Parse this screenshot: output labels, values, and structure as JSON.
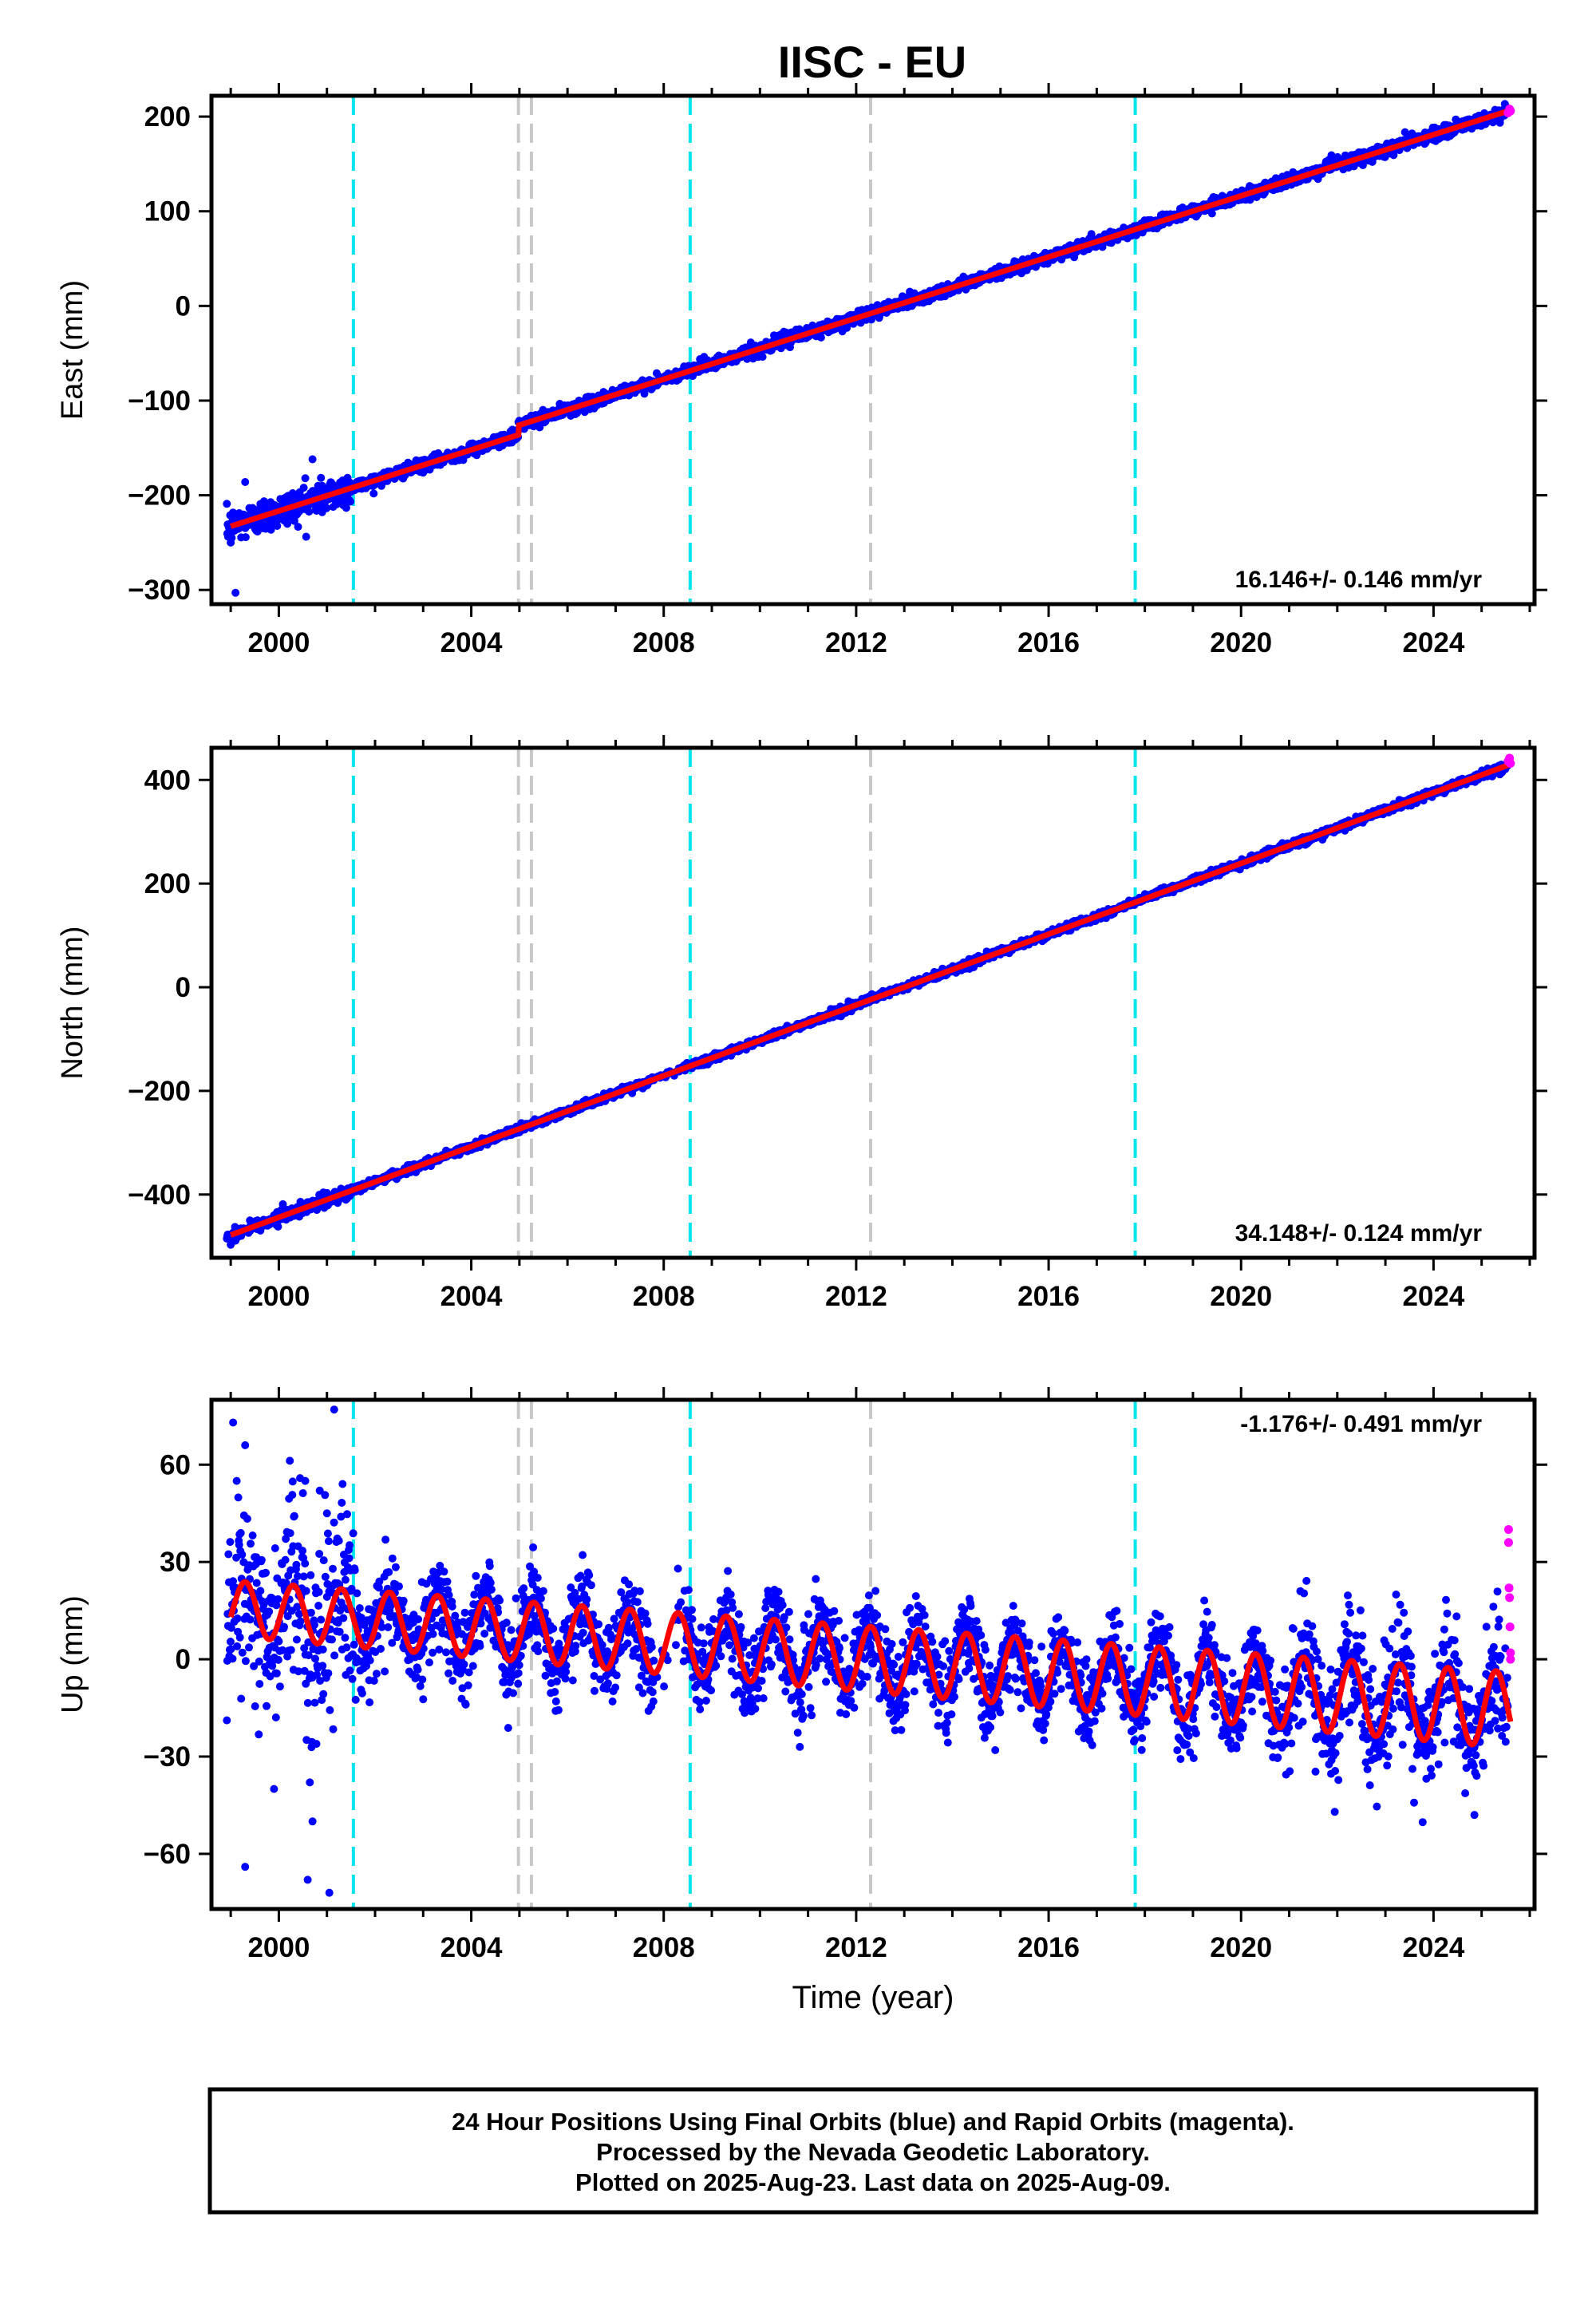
{
  "title": "IISC - EU",
  "colors": {
    "final_orbits": "#0000ff",
    "rapid_orbits": "#ff00ff",
    "model_fit": "#ff0000",
    "equipment_change": "#00e5ee",
    "earthquake": "#c8c8c8"
  },
  "xaxis": {
    "label": "Time (year)",
    "range": [
      1998.6,
      2026.1
    ],
    "tick_labels": [
      "2000",
      "2004",
      "2008",
      "2012",
      "2016",
      "2020",
      "2024"
    ]
  },
  "events": {
    "equipment_change_years": [
      2001.55,
      2008.55,
      2017.8
    ],
    "earthquake_years": [
      2004.98,
      2005.25,
      2012.3
    ]
  },
  "footer": {
    "line1": "24 Hour Positions Using Final Orbits (blue) and Rapid Orbits (magenta).",
    "line2": "Processed by the Nevada Geodetic Laboratory.",
    "line3": "Plotted on 2025-Aug-23. Last data on 2025-Aug-09."
  },
  "chart_data": [
    {
      "type": "scatter",
      "component": "east",
      "ylabel": "East (mm)",
      "ylim": [
        -315,
        222
      ],
      "y_tick_labels": [
        "200",
        "100",
        "0",
        "−100",
        "−200",
        "−300"
      ],
      "rate_label": "16.146+/- 0.146 mm/yr",
      "fit": {
        "rate_mm_per_yr": 16.146,
        "reference_year": 2012.3,
        "value_at_reference": -18,
        "annual_amplitude": 0,
        "amplitude_trend": 0,
        "steps": [
          {
            "year": 2004.98,
            "offset": 10
          }
        ]
      },
      "noise": [
        {
          "from": 1998.9,
          "to": 2001.5,
          "sigma": 9
        },
        {
          "from": 2001.5,
          "to": 2026,
          "sigma": 3.2
        }
      ],
      "outliers": [
        {
          "x": 1999.1,
          "y": -303
        },
        {
          "x": 1999.3,
          "y": -186
        },
        {
          "x": 1999.0,
          "y": -250
        },
        {
          "x": 2000.7,
          "y": -162
        },
        {
          "x": 2000.55,
          "y": -182
        },
        {
          "x": 2000.9,
          "y": -190
        }
      ],
      "rapid": [
        {
          "x": 2025.55,
          "y": 204
        },
        {
          "x": 2025.58,
          "y": 208
        },
        {
          "x": 2025.6,
          "y": 206
        }
      ]
    },
    {
      "type": "scatter",
      "component": "north",
      "ylabel": "North (mm)",
      "ylim": [
        -522,
        462
      ],
      "y_tick_labels": [
        "400",
        "200",
        "0",
        "−200",
        "−400"
      ],
      "rate_label": "34.148+/- 0.124 mm/yr",
      "fit": {
        "rate_mm_per_yr": 34.148,
        "reference_year": 2012.3,
        "value_at_reference": -24,
        "annual_amplitude": 0,
        "amplitude_trend": 0,
        "steps": []
      },
      "noise": [
        {
          "from": 1998.9,
          "to": 2001.5,
          "sigma": 6
        },
        {
          "from": 2001.5,
          "to": 2026,
          "sigma": 3.5
        }
      ],
      "outliers": [
        {
          "x": 1999.0,
          "y": -497
        },
        {
          "x": 1999.4,
          "y": -450
        },
        {
          "x": 1999.9,
          "y": -440
        }
      ],
      "rapid": [
        {
          "x": 2025.55,
          "y": 436
        },
        {
          "x": 2025.58,
          "y": 442
        },
        {
          "x": 2025.6,
          "y": 432
        }
      ]
    },
    {
      "type": "scatter",
      "component": "up",
      "ylabel": "Up (mm)",
      "ylim": [
        -77,
        80
      ],
      "y_tick_labels": [
        "60",
        "30",
        "0",
        "−30",
        "−60"
      ],
      "rate_label": "-1.176+/- 0.491 mm/yr",
      "fit": {
        "rate_mm_per_yr": -1.176,
        "reference_year": 2012.3,
        "value_at_reference": 0,
        "annual_amplitude": 8.5,
        "amplitude_trend": 0.12,
        "steps": []
      },
      "noise": [
        {
          "from": 1998.9,
          "to": 2001.6,
          "sigma": 14
        },
        {
          "from": 2001.6,
          "to": 2021,
          "sigma": 6.5
        },
        {
          "from": 2021,
          "to": 2026,
          "sigma": 9
        }
      ],
      "outliers": [
        {
          "x": 1999.05,
          "y": 73
        },
        {
          "x": 1999.3,
          "y": 66
        },
        {
          "x": 2001.15,
          "y": 77
        },
        {
          "x": 2000.55,
          "y": 55
        },
        {
          "x": 2000.85,
          "y": 52
        },
        {
          "x": 2001.0,
          "y": 45
        },
        {
          "x": 1999.3,
          "y": -64
        },
        {
          "x": 2000.6,
          "y": -68
        },
        {
          "x": 2001.05,
          "y": -72
        },
        {
          "x": 2000.7,
          "y": -50
        },
        {
          "x": 1999.9,
          "y": -40
        },
        {
          "x": 2024.85,
          "y": -48
        }
      ],
      "rapid": [
        {
          "x": 2025.56,
          "y": 40
        },
        {
          "x": 2025.56,
          "y": 36
        },
        {
          "x": 2025.57,
          "y": 22
        },
        {
          "x": 2025.58,
          "y": 19
        },
        {
          "x": 2025.59,
          "y": 10
        },
        {
          "x": 2025.6,
          "y": 2
        },
        {
          "x": 2025.6,
          "y": 0
        }
      ]
    }
  ]
}
